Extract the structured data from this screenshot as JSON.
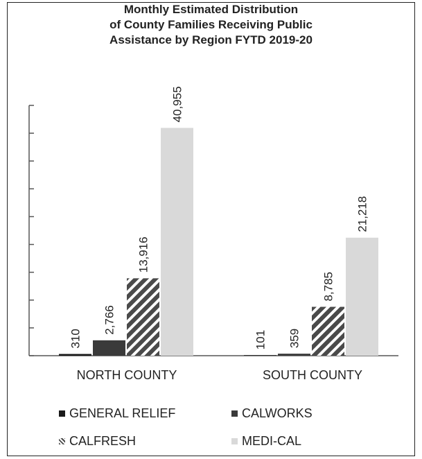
{
  "chart_data": {
    "type": "bar",
    "title_lines": [
      "Monthly Estimated Distribution",
      "of County Families Receiving Public",
      "Assistance by Region FYTD 2019-20"
    ],
    "categories": [
      "NORTH COUNTY",
      "SOUTH COUNTY"
    ],
    "series": [
      {
        "name": "GENERAL RELIEF",
        "values": [
          310,
          101
        ],
        "labels": [
          "310",
          "101"
        ],
        "color": "#1a1a1a",
        "pattern": "solid"
      },
      {
        "name": "CALWORKS",
        "values": [
          2766,
          359
        ],
        "labels": [
          "2,766",
          "359"
        ],
        "color": "#3a3a3a",
        "pattern": "solid"
      },
      {
        "name": "CALFRESH",
        "values": [
          13916,
          8785
        ],
        "labels": [
          "13,916",
          "8,785"
        ],
        "color": "#4a4a4a",
        "pattern": "diagonal-stripes"
      },
      {
        "name": "MEDI-CAL",
        "values": [
          40955,
          21218
        ],
        "labels": [
          "40,955",
          "21,218"
        ],
        "color": "#d9d9d9",
        "pattern": "solid"
      }
    ],
    "ylim": [
      0,
      45000
    ],
    "y_tick_step": 5000,
    "grid": false,
    "legend_position": "bottom"
  }
}
